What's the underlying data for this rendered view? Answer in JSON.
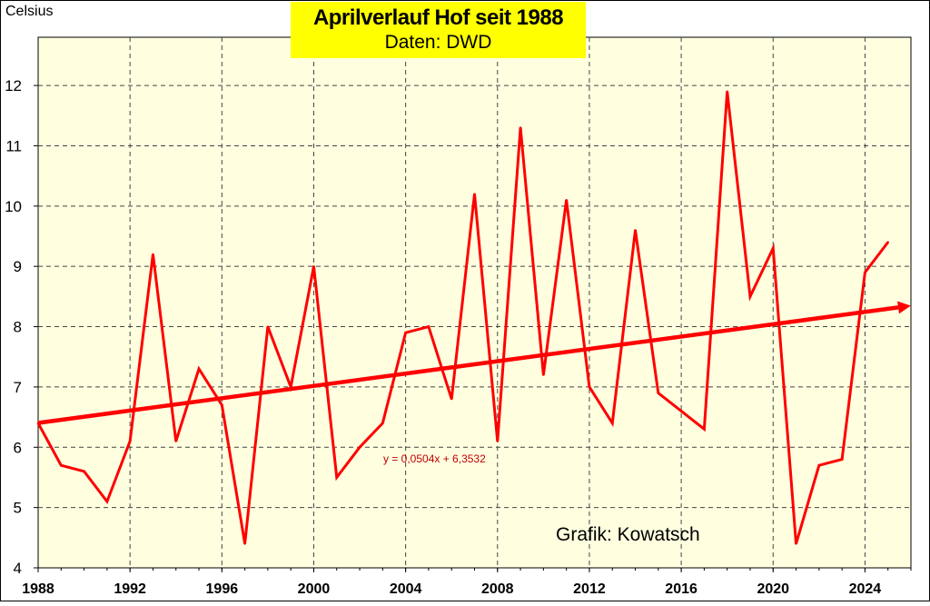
{
  "chart_data": {
    "type": "line",
    "title": "Aprilverlauf Hof seit 1988",
    "subtitle": "Daten: DWD",
    "ylabel": "Celsius",
    "credit": "Grafik: Kowatsch",
    "xlim": [
      1988,
      2026
    ],
    "ylim": [
      4,
      12.8
    ],
    "xticks": [
      1988,
      1992,
      1996,
      2000,
      2004,
      2008,
      2012,
      2016,
      2020,
      2024
    ],
    "yticks": [
      4,
      5,
      6,
      7,
      8,
      9,
      10,
      11,
      12
    ],
    "series": [
      {
        "color": "#ff0000",
        "x": [
          1988,
          1989,
          1990,
          1991,
          1992,
          1993,
          1994,
          1995,
          1996,
          1997,
          1998,
          1999,
          2000,
          2001,
          2002,
          2003,
          2004,
          2005,
          2006,
          2007,
          2008,
          2009,
          2010,
          2011,
          2012,
          2013,
          2014,
          2015,
          2016,
          2017,
          2018,
          2019,
          2020,
          2021,
          2022,
          2023,
          2024,
          2025
        ],
        "y": [
          6.4,
          5.7,
          5.6,
          5.1,
          6.1,
          9.2,
          6.1,
          7.3,
          6.7,
          4.4,
          8.0,
          7.0,
          9.0,
          5.5,
          6.0,
          6.4,
          7.9,
          8.0,
          6.8,
          10.2,
          6.1,
          11.3,
          7.2,
          10.1,
          7.0,
          6.4,
          9.6,
          6.9,
          6.6,
          6.3,
          11.9,
          8.5,
          9.3,
          4.4,
          5.7,
          5.8,
          8.9,
          9.4
        ]
      }
    ],
    "trendline": {
      "color": "#ff0000",
      "equation": "y = 0,0504x + 6,3532",
      "slope": 0.0504,
      "intercept": 6.3532,
      "x_start": 1988,
      "x_end": 2026
    },
    "plot_background": "#ffffe0",
    "grid": "vertical and horizontal dashed",
    "title_background": "#ffff00"
  }
}
